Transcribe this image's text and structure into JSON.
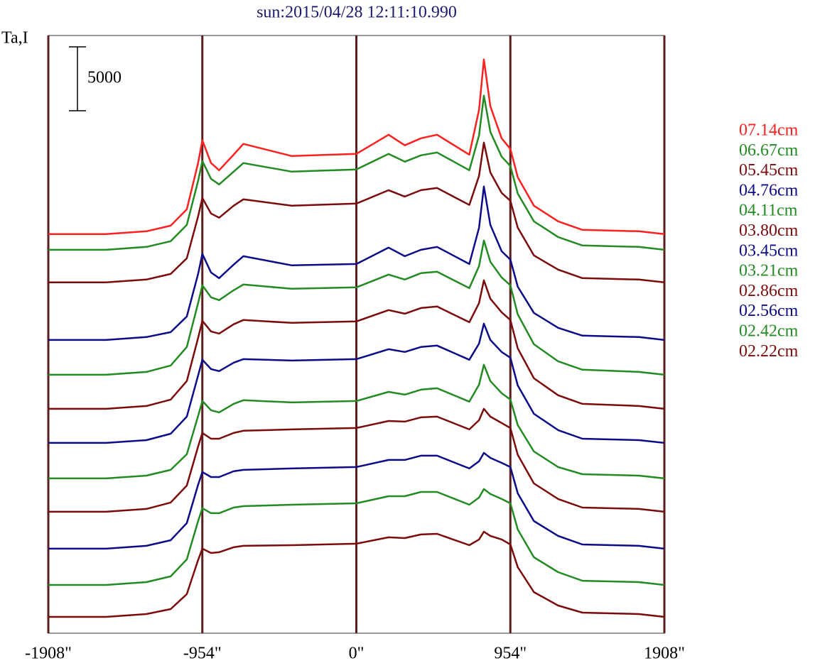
{
  "chart_data": {
    "type": "line",
    "title": "sun:2015/04/28 12:11:10.990",
    "y_label": "Ta,I",
    "scale_bar": 5000,
    "x": [
      -1908,
      -1550,
      -1300,
      -1150,
      -1050,
      -980,
      -954,
      -900,
      -850,
      -760,
      -700,
      -400,
      0,
      200,
      300,
      400,
      500,
      700,
      760,
      790,
      830,
      900,
      954,
      1000,
      1100,
      1250,
      1400,
      1750,
      1908
    ],
    "xlim": [
      -1908,
      1908
    ],
    "xticks": [
      {
        "value": -1908,
        "label": "-1908\""
      },
      {
        "value": -954,
        "label": "-954\""
      },
      {
        "value": 0,
        "label": "0\""
      },
      {
        "value": 954,
        "label": "954\""
      },
      {
        "value": 1908,
        "label": "1908\""
      }
    ],
    "ylim": [
      0,
      46800
    ],
    "grid": true,
    "grid_color": "#5a1e1e",
    "legend_position": "right",
    "series": [
      {
        "name": "07.14cm",
        "color": "#ff2020",
        "values": [
          31250,
          31250,
          31470,
          31910,
          33190,
          36810,
          38590,
          36810,
          36250,
          37470,
          38310,
          37360,
          37530,
          39030,
          38200,
          38750,
          39030,
          37470,
          40980,
          44920,
          41260,
          38750,
          37920,
          35700,
          33470,
          32250,
          31580,
          31470,
          31250
        ]
      },
      {
        "name": "06.67cm",
        "color": "#228b22",
        "values": [
          30020,
          30020,
          30250,
          30690,
          31970,
          35420,
          36970,
          35580,
          35140,
          36140,
          36810,
          36140,
          36310,
          37530,
          36920,
          37420,
          37640,
          36250,
          38980,
          42090,
          39250,
          37310,
          36580,
          34420,
          32250,
          31020,
          30360,
          30250,
          30020
        ]
      },
      {
        "name": "05.45cm",
        "color": "#7d0b0b",
        "values": [
          27470,
          27470,
          27690,
          28130,
          29360,
          32640,
          34080,
          32860,
          32530,
          33470,
          33970,
          33470,
          33640,
          34690,
          34190,
          34690,
          34860,
          33530,
          35810,
          38420,
          36080,
          34470,
          33860,
          31750,
          29580,
          28470,
          27800,
          27690,
          27470
        ]
      },
      {
        "name": "04.76cm",
        "color": "#0c0c8a",
        "values": [
          22960,
          22960,
          23190,
          23570,
          24800,
          28130,
          29690,
          28240,
          27800,
          28860,
          29520,
          28800,
          28910,
          30190,
          29520,
          30020,
          30250,
          28910,
          31750,
          34970,
          31970,
          29910,
          29250,
          27130,
          25080,
          23910,
          23300,
          23190,
          22960
        ]
      },
      {
        "name": "04.11cm",
        "color": "#228b22",
        "values": [
          20240,
          20240,
          20460,
          20960,
          22410,
          25850,
          27240,
          26300,
          26080,
          26850,
          27300,
          26970,
          27080,
          28080,
          27690,
          28190,
          28300,
          27020,
          28750,
          30750,
          29080,
          27860,
          27240,
          24960,
          22630,
          21290,
          20630,
          20460,
          20240
        ]
      },
      {
        "name": "03.80cm",
        "color": "#7d0b0b",
        "values": [
          17570,
          17570,
          17790,
          18290,
          19740,
          23130,
          24460,
          23630,
          23460,
          24190,
          24520,
          24300,
          24410,
          25300,
          25020,
          25460,
          25580,
          24350,
          25850,
          27630,
          26190,
          25130,
          24520,
          22300,
          19960,
          18630,
          17960,
          17790,
          17570
        ]
      },
      {
        "name": "03.45cm",
        "color": "#0c0c8a",
        "values": [
          14900,
          14900,
          15120,
          15620,
          16960,
          20180,
          21410,
          20680,
          20520,
          21180,
          21460,
          21350,
          21460,
          22240,
          22020,
          22410,
          22520,
          21410,
          22680,
          24240,
          22960,
          22020,
          21570,
          19400,
          17180,
          15900,
          15230,
          15120,
          14900
        ]
      },
      {
        "name": "03.21cm",
        "color": "#228b22",
        "values": [
          12120,
          12120,
          12340,
          12790,
          14010,
          17010,
          18180,
          17460,
          17290,
          17960,
          18240,
          18070,
          18180,
          18900,
          18680,
          19070,
          19180,
          18130,
          19460,
          21020,
          19740,
          18790,
          18290,
          16290,
          14230,
          13010,
          12450,
          12340,
          12120
        ]
      },
      {
        "name": "02.86cm",
        "color": "#7d0b0b",
        "values": [
          9510,
          9510,
          9730,
          10230,
          11560,
          14620,
          15680,
          15230,
          15230,
          15680,
          15850,
          15960,
          16070,
          16620,
          16570,
          16900,
          16960,
          15960,
          16680,
          17570,
          16960,
          16460,
          16070,
          13960,
          11730,
          10510,
          9840,
          9730,
          9510
        ]
      },
      {
        "name": "02.56cm",
        "color": "#0c0c8a",
        "values": [
          6620,
          6620,
          6840,
          7280,
          8620,
          11620,
          12620,
          12230,
          12230,
          12680,
          12790,
          12900,
          13010,
          13570,
          13570,
          13900,
          13900,
          12900,
          13460,
          14120,
          13730,
          13340,
          13010,
          10950,
          8780,
          7620,
          6950,
          6840,
          6620
        ]
      },
      {
        "name": "02.42cm",
        "color": "#228b22",
        "values": [
          3780,
          3780,
          4000,
          4450,
          5780,
          8780,
          9790,
          9400,
          9400,
          9840,
          9950,
          10060,
          10170,
          10730,
          10730,
          11060,
          11060,
          10060,
          10620,
          11290,
          10900,
          10510,
          10170,
          8120,
          5950,
          4780,
          4110,
          4000,
          3780
        ]
      },
      {
        "name": "02.22cm",
        "color": "#7d0b0b",
        "values": [
          1280,
          1280,
          1500,
          1890,
          3060,
          5730,
          6620,
          6280,
          6340,
          6730,
          6840,
          6890,
          7010,
          7510,
          7450,
          7730,
          7780,
          6890,
          7340,
          7950,
          7620,
          7340,
          6950,
          5170,
          3220,
          2170,
          1610,
          1500,
          1280
        ]
      }
    ]
  }
}
